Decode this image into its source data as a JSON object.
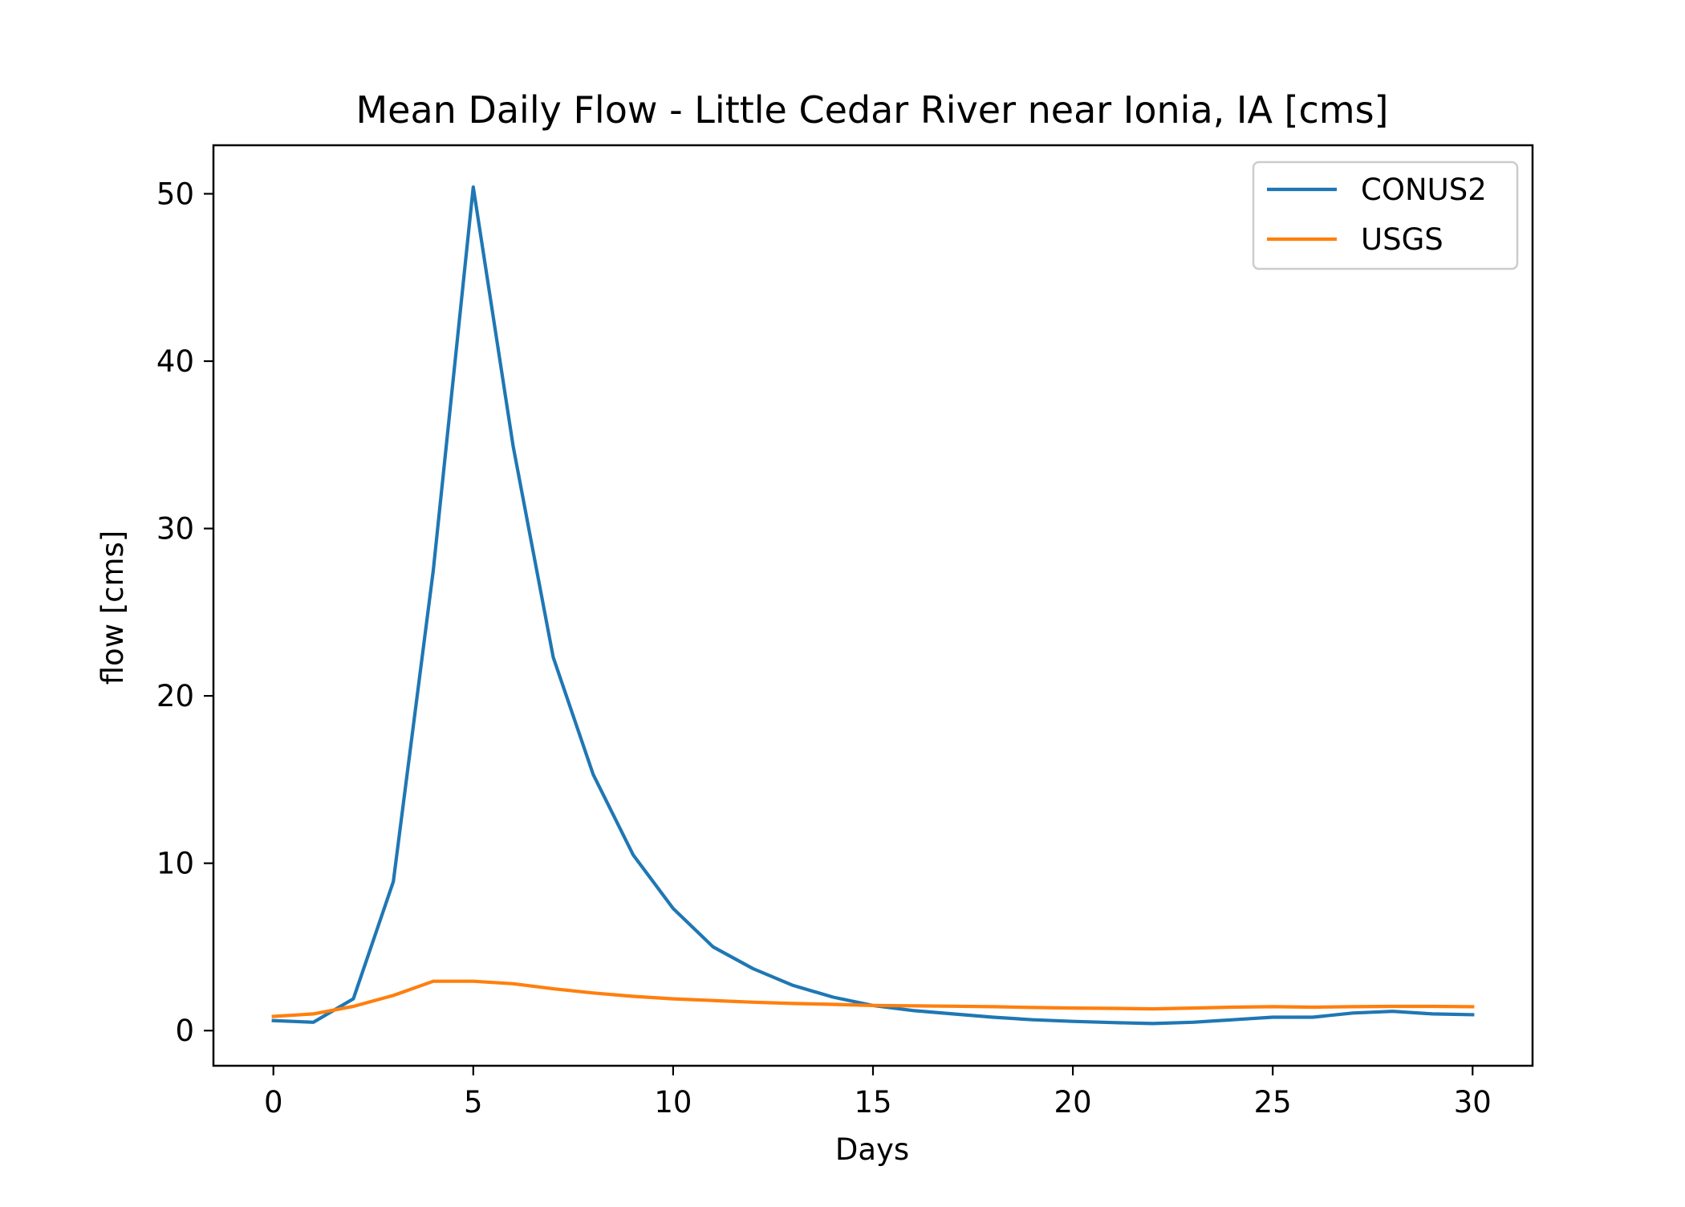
{
  "chart_data": {
    "type": "line",
    "title": "Mean Daily Flow - Little Cedar River near Ionia, IA [cms]",
    "xlabel": "Days",
    "ylabel": "flow [cms]",
    "xlim": [
      -1.5,
      31.5
    ],
    "ylim": [
      -2.1,
      52.9
    ],
    "x_ticks": [
      0,
      5,
      10,
      15,
      20,
      25,
      30
    ],
    "y_ticks": [
      0,
      10,
      20,
      30,
      40,
      50
    ],
    "x_tick_labels": [
      "0",
      "5",
      "10",
      "15",
      "20",
      "25",
      "30"
    ],
    "y_tick_labels": [
      "0",
      "10",
      "20",
      "30",
      "40",
      "50"
    ],
    "grid": false,
    "legend_position": "top-right",
    "x": [
      0,
      1,
      2,
      3,
      4,
      5,
      6,
      7,
      8,
      9,
      10,
      11,
      12,
      13,
      14,
      15,
      16,
      17,
      18,
      19,
      20,
      21,
      22,
      23,
      24,
      25,
      26,
      27,
      28,
      29,
      30
    ],
    "series": [
      {
        "name": "CONUS2",
        "color": "#1f77b4",
        "values": [
          0.6,
          0.5,
          1.9,
          8.9,
          27.5,
          50.4,
          34.9,
          22.3,
          15.3,
          10.5,
          7.3,
          5.0,
          3.7,
          2.7,
          2.0,
          1.5,
          1.2,
          1.0,
          0.8,
          0.65,
          0.55,
          0.48,
          0.42,
          0.5,
          0.65,
          0.8,
          0.8,
          1.05,
          1.15,
          1.0,
          0.95
        ]
      },
      {
        "name": "USGS",
        "color": "#ff7f0e",
        "values": [
          0.85,
          1.0,
          1.45,
          2.1,
          2.95,
          2.95,
          2.8,
          2.5,
          2.25,
          2.05,
          1.9,
          1.8,
          1.7,
          1.62,
          1.57,
          1.5,
          1.48,
          1.46,
          1.43,
          1.38,
          1.35,
          1.33,
          1.3,
          1.35,
          1.4,
          1.43,
          1.4,
          1.43,
          1.45,
          1.45,
          1.43
        ]
      }
    ]
  }
}
